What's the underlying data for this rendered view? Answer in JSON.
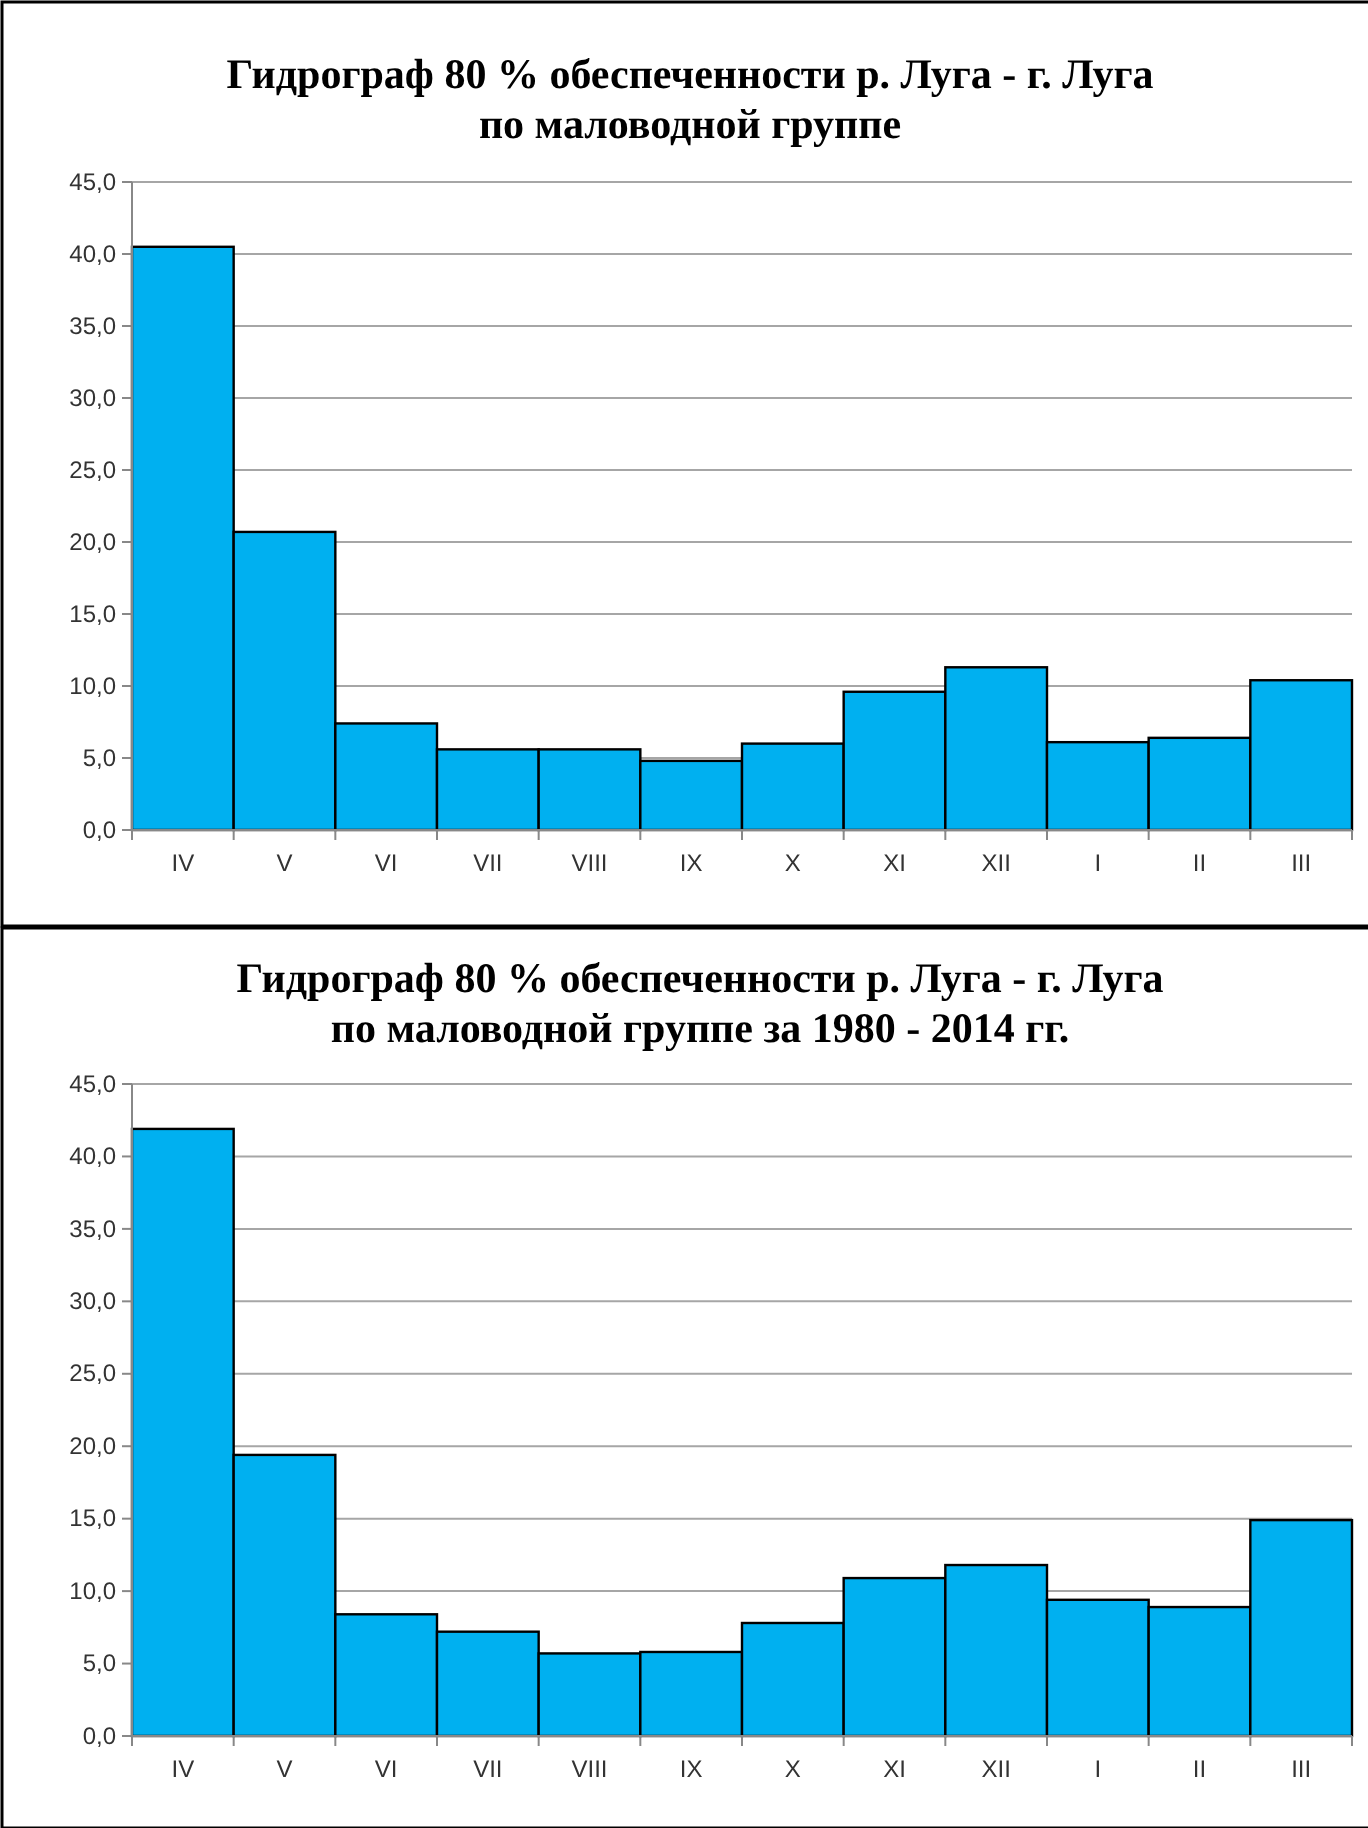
{
  "chart_data": [
    {
      "type": "bar",
      "title": "Гидрограф 80 % обеспеченности р. Луга - г. Луга\nпо маловодной группе",
      "categories": [
        "IV",
        "V",
        "VI",
        "VII",
        "VIII",
        "IX",
        "X",
        "XI",
        "XII",
        "I",
        "II",
        "III"
      ],
      "values": [
        40.5,
        20.7,
        7.4,
        5.6,
        5.6,
        4.8,
        6.0,
        9.6,
        11.3,
        6.1,
        6.4,
        10.4
      ],
      "color": "#00b0f0",
      "ylim": [
        0,
        45
      ],
      "yticks": [
        {
          "value": 0,
          "label": "0,0"
        },
        {
          "value": 5,
          "label": "5,0"
        },
        {
          "value": 10,
          "label": "10,0"
        },
        {
          "value": 15,
          "label": "15,0"
        },
        {
          "value": 20,
          "label": "20,0"
        },
        {
          "value": 25,
          "label": "25,0"
        },
        {
          "value": 30,
          "label": "30,0"
        },
        {
          "value": 35,
          "label": "35,0"
        },
        {
          "value": 40,
          "label": "40,0"
        },
        {
          "value": 45,
          "label": "45,0"
        }
      ],
      "grid": "y"
    },
    {
      "type": "bar",
      "title": "Гидрограф 80 % обеспеченности р. Луга - г. Луга\nпо маловодной группе за 1980 - 2014 гг.",
      "categories": [
        "IV",
        "V",
        "VI",
        "VII",
        "VIII",
        "IX",
        "X",
        "XI",
        "XII",
        "I",
        "II",
        "III"
      ],
      "values": [
        41.9,
        19.4,
        8.4,
        7.2,
        5.7,
        5.8,
        7.8,
        10.9,
        11.8,
        9.4,
        8.9,
        14.9
      ],
      "color": "#00b0f0",
      "ylim": [
        0,
        45
      ],
      "yticks": [
        {
          "value": 0,
          "label": "0,0"
        },
        {
          "value": 5,
          "label": "5,0"
        },
        {
          "value": 10,
          "label": "10,0"
        },
        {
          "value": 15,
          "label": "15,0"
        },
        {
          "value": 20,
          "label": "20,0"
        },
        {
          "value": 25,
          "label": "25,0"
        },
        {
          "value": 30,
          "label": "30,0"
        },
        {
          "value": 35,
          "label": "35,0"
        },
        {
          "value": 40,
          "label": "40,0"
        },
        {
          "value": 45,
          "label": "45,0"
        }
      ],
      "grid": "y"
    }
  ]
}
